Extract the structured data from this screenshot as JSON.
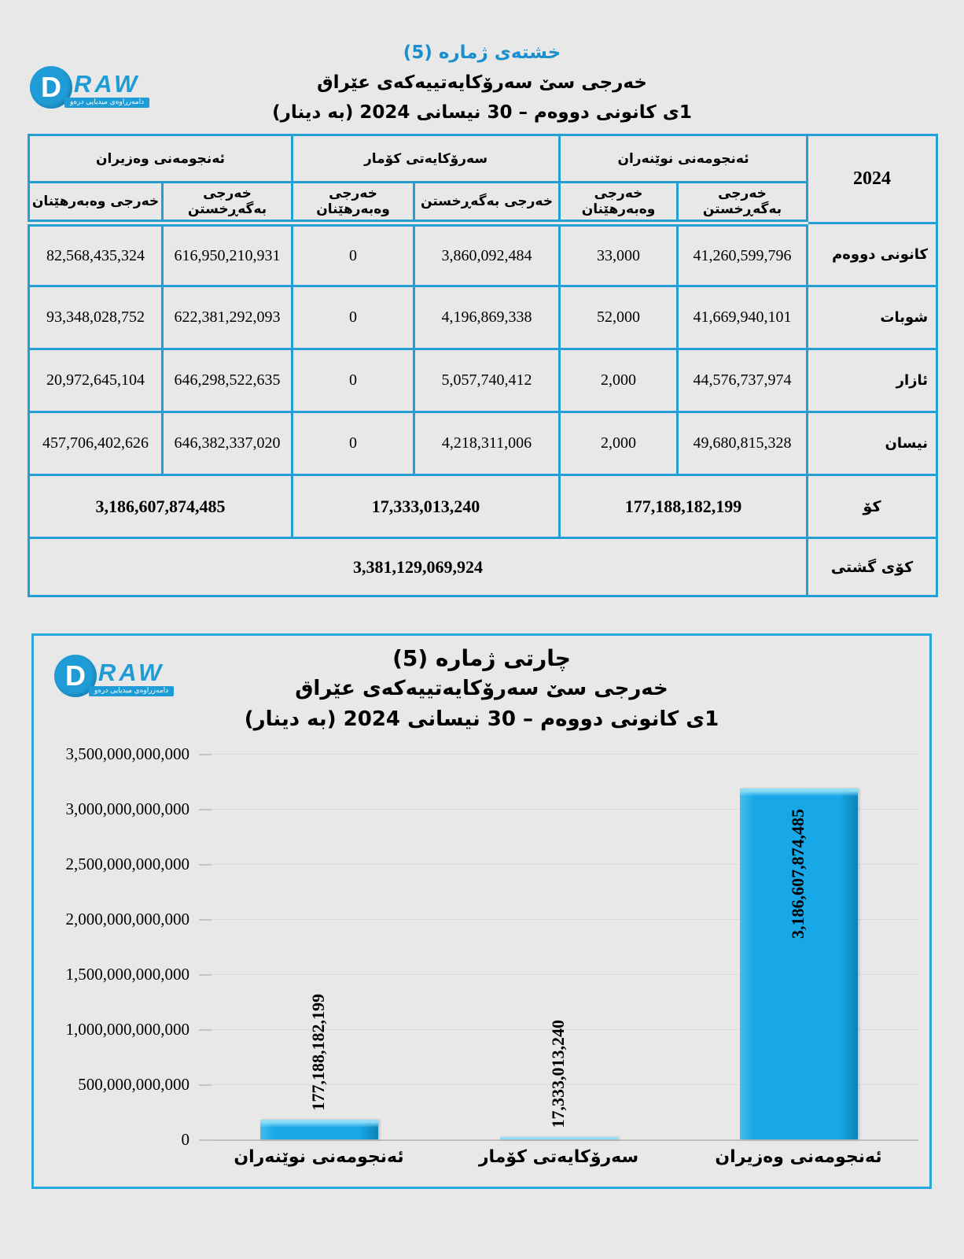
{
  "colors": {
    "accent": "#259fd3",
    "title_blue": "#1b8fce",
    "bar_fill": "#18a8e7",
    "logo_blue": "#1f9cd6"
  },
  "logo": {
    "d": "D",
    "raw": "RAW",
    "tagline": "دامەزراوەی میدیایی درەو"
  },
  "table_section": {
    "title": "خشتەی ژمارە (5)",
    "subtitle": "خەرجی سێ سەرۆکایەتییەکەی عێراق",
    "period": "1ی کانونی دووەم – 30 نیسانی 2024 (بە دینار)",
    "year": "2024",
    "groups": [
      {
        "name": "ئەنجومەنی نوێنەران",
        "cols": [
          "خەرجی بەگەڕخستن",
          "خەرجی وەبەرهێنان"
        ]
      },
      {
        "name": "سەرۆکایەتی کۆمار",
        "cols": [
          "خەرجی بەگەڕخستن",
          "خەرجی وەبەرهێنان"
        ]
      },
      {
        "name": "ئەنجومەنی وەزیران",
        "cols": [
          "خەرجی بەگەڕخستن",
          "خەرجی وەبەرهێنان"
        ]
      }
    ],
    "rows": [
      {
        "month": "کانونی دووەم",
        "values": [
          "41,260,599,796",
          "33,000",
          "3,860,092,484",
          "0",
          "616,950,210,931",
          "82,568,435,324"
        ]
      },
      {
        "month": "شوبات",
        "values": [
          "41,669,940,101",
          "52,000",
          "4,196,869,338",
          "0",
          "622,381,292,093",
          "93,348,028,752"
        ]
      },
      {
        "month": "ئازار",
        "values": [
          "44,576,737,974",
          "2,000",
          "5,057,740,412",
          "0",
          "646,298,522,635",
          "20,972,645,104"
        ]
      },
      {
        "month": "نیسان",
        "values": [
          "49,680,815,328",
          "2,000",
          "4,218,311,006",
          "0",
          "646,382,337,020",
          "457,706,402,626"
        ]
      }
    ],
    "totals": {
      "label": "کۆ",
      "values": [
        "177,188,182,199",
        "17,333,013,240",
        "3,186,607,874,485"
      ]
    },
    "grand_total": {
      "label": "کۆی گشتی",
      "value": "3,381,129,069,924"
    }
  },
  "chart_data": {
    "type": "bar",
    "title": "چارتی ژمارە (5)",
    "subtitle": "خەرجی سێ سەرۆکایەتییەکەی عێراق",
    "period": "1ی کانونی دووەم – 30 نیسانی 2024 (بە دینار)",
    "categories": [
      "ئەنجومەنی نوێنەران",
      "سەرۆکایەتی کۆمار",
      "ئەنجومەنی وەزیران"
    ],
    "values": [
      177188182199,
      17333013240,
      3186607874485
    ],
    "value_labels": [
      "177,188,182,199",
      "17,333,013,240",
      "3,186,607,874,485"
    ],
    "ylim": [
      0,
      3500000000000
    ],
    "ytick_step": 500000000000,
    "yticks": [
      "3,500,000,000,000",
      "3,000,000,000,000",
      "2,500,000,000,000",
      "2,000,000,000,000",
      "1,500,000,000,000",
      "1,000,000,000,000",
      "500,000,000,000",
      "0"
    ],
    "bar_color": "#18a8e7",
    "grid": true,
    "legend": "none"
  }
}
